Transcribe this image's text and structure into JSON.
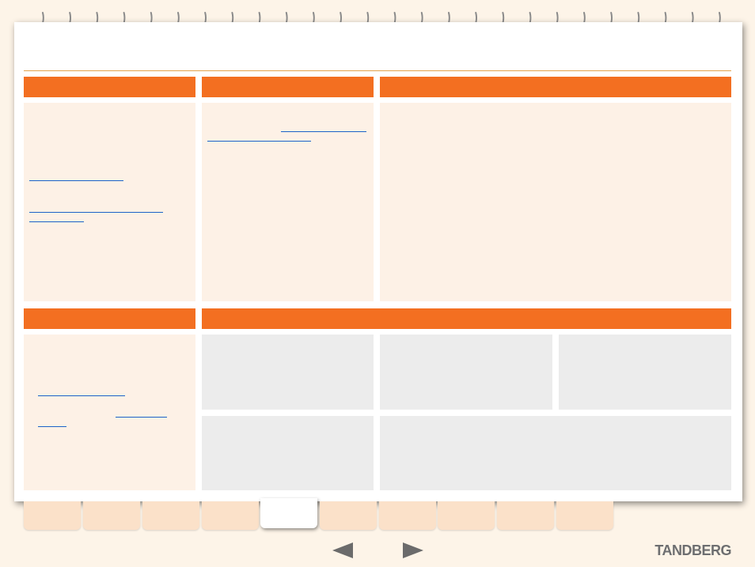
{
  "brand": {
    "logo_text": "TANDBERG"
  },
  "navigation": {
    "prev_icon": "left-arrow-icon",
    "next_icon": "right-arrow-icon"
  },
  "colors": {
    "header_orange": "#f36f21",
    "panel_cream": "#fdf1e6",
    "panel_grey": "#ececec",
    "link_blue": "#1a63c8"
  },
  "tabs": {
    "count": 10,
    "active_index": 4
  }
}
